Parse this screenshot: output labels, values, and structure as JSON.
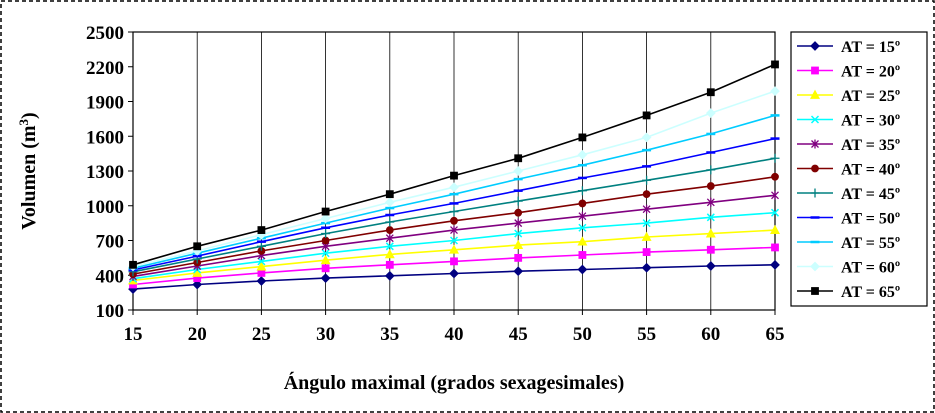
{
  "chart_data": {
    "type": "line",
    "xlabel": "Ángulo maximal (grados sexagesimales)",
    "ylabel": "Volumen (m",
    "ylabel_sup": "3",
    "ylabel_end": ")",
    "x": [
      15,
      20,
      25,
      30,
      35,
      40,
      45,
      50,
      55,
      60,
      65
    ],
    "xlim": [
      15,
      65
    ],
    "ylim": [
      100,
      2500
    ],
    "yticks": [
      100,
      400,
      700,
      1000,
      1300,
      1600,
      1900,
      2200,
      2500
    ],
    "grid": "vertical",
    "legend_position": "right",
    "series": [
      {
        "name": "AT = 15º",
        "color": "#000080",
        "marker": "diamond",
        "values": [
          280,
          320,
          350,
          375,
          395,
          415,
          435,
          450,
          465,
          480,
          490
        ]
      },
      {
        "name": "AT = 20º",
        "color": "#FF00FF",
        "marker": "square",
        "values": [
          320,
          375,
          420,
          460,
          490,
          520,
          550,
          575,
          600,
          620,
          640
        ]
      },
      {
        "name": "AT = 25º",
        "color": "#FFFF00",
        "marker": "triangle",
        "values": [
          355,
          420,
          475,
          530,
          580,
          620,
          660,
          690,
          730,
          760,
          790
        ]
      },
      {
        "name": "AT = 30º",
        "color": "#00FFFF",
        "marker": "x",
        "values": [
          370,
          450,
          520,
          590,
          650,
          700,
          760,
          810,
          850,
          900,
          940
        ]
      },
      {
        "name": "AT = 35º",
        "color": "#800080",
        "marker": "star",
        "values": [
          390,
          480,
          570,
          650,
          720,
          790,
          850,
          910,
          970,
          1030,
          1090
        ]
      },
      {
        "name": "AT = 40º",
        "color": "#800000",
        "marker": "circle",
        "values": [
          410,
          510,
          610,
          700,
          790,
          870,
          940,
          1020,
          1100,
          1170,
          1250
        ]
      },
      {
        "name": "AT = 45º",
        "color": "#008080",
        "marker": "plus",
        "values": [
          430,
          540,
          650,
          760,
          860,
          950,
          1040,
          1130,
          1220,
          1310,
          1410
        ]
      },
      {
        "name": "AT = 50º",
        "color": "#0000FF",
        "marker": "dash",
        "values": [
          445,
          565,
          690,
          810,
          920,
          1020,
          1130,
          1240,
          1340,
          1460,
          1580
        ]
      },
      {
        "name": "AT = 55º",
        "color": "#00CCFF",
        "marker": "dash",
        "values": [
          460,
          590,
          720,
          850,
          980,
          1100,
          1230,
          1350,
          1480,
          1620,
          1780
        ]
      },
      {
        "name": "AT = 60º",
        "color": "#CCFFFF",
        "marker": "diamond",
        "values": [
          475,
          610,
          750,
          890,
          1030,
          1160,
          1300,
          1440,
          1590,
          1800,
          1990
        ]
      },
      {
        "name": "AT = 65º",
        "color": "#000000",
        "marker": "square",
        "values": [
          490,
          650,
          790,
          950,
          1100,
          1260,
          1410,
          1590,
          1780,
          1980,
          2220
        ]
      }
    ]
  }
}
